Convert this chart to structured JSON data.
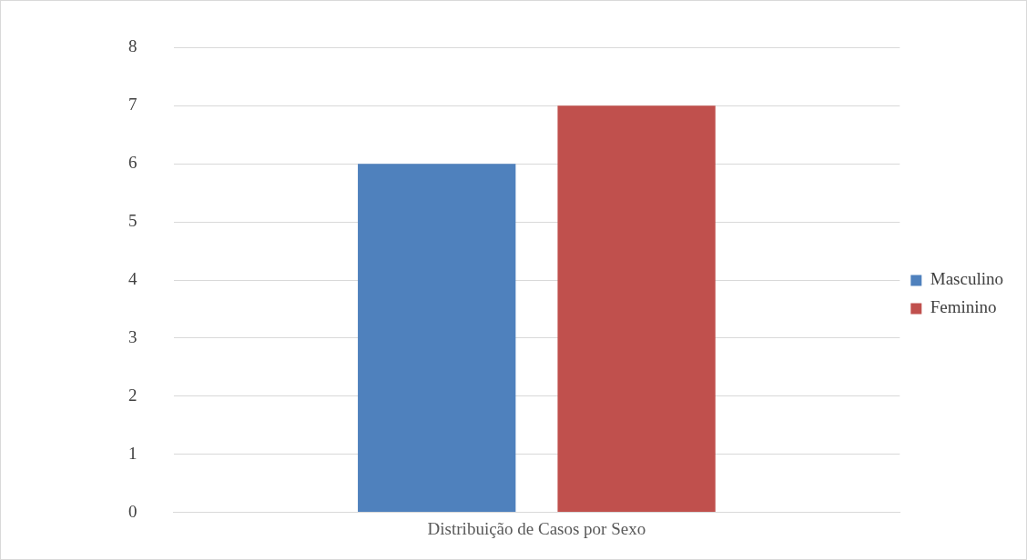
{
  "chart_data": {
    "type": "bar",
    "categories": [
      "Distribuição de Casos por Sexo"
    ],
    "series": [
      {
        "name": "Masculino",
        "color": "#4f81bd",
        "values": [
          6
        ]
      },
      {
        "name": "Feminino",
        "color": "#c0504d",
        "values": [
          7
        ]
      }
    ],
    "ylim": [
      0,
      8
    ],
    "yticks": [
      0,
      1,
      2,
      3,
      4,
      5,
      6,
      7,
      8
    ],
    "grid": "y",
    "legend": "right"
  }
}
